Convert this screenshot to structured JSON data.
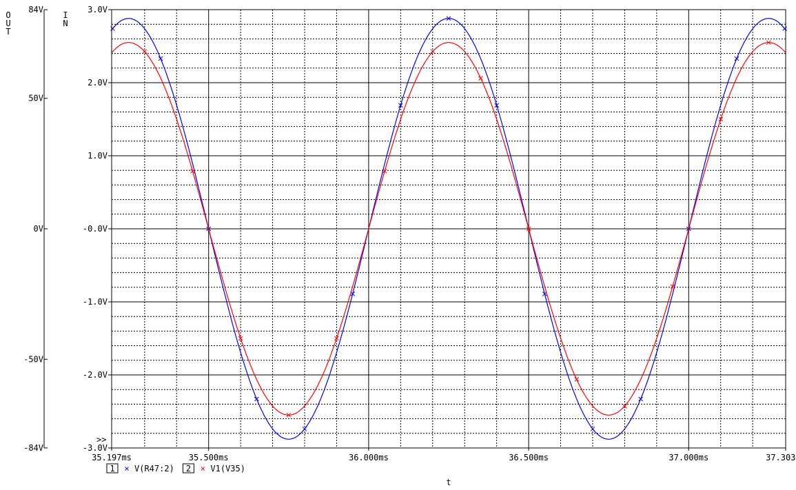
{
  "chart_data": {
    "type": "line",
    "xlabel": "t",
    "x_ticks": [
      "35.197ms",
      "35.500ms",
      "36.000ms",
      "36.500ms",
      "37.000ms",
      "37.303ms"
    ],
    "x_tick_values": [
      35.197,
      35.5,
      36.0,
      36.5,
      37.0,
      37.303
    ],
    "xlim": [
      35.197,
      37.303
    ],
    "y_axes": [
      {
        "id": "IN",
        "label": "I N",
        "ylim": [
          -3.0,
          3.0
        ],
        "ticks": [
          3.0,
          2.0,
          1.0,
          0.0,
          -1.0,
          -2.0,
          -3.0
        ],
        "tick_labels": [
          "3.0V",
          "2.0V",
          "1.0V",
          "-0.0V",
          "-1.0V",
          "-2.0V",
          "-3.0V"
        ],
        "overflow_marker": ">>"
      },
      {
        "id": "OUT",
        "label": "O U T",
        "ylim": [
          -84,
          84
        ],
        "ticks": [
          84,
          50,
          0,
          -50,
          -84
        ],
        "tick_labels": [
          "84V",
          "50V",
          "0V",
          "-50V",
          "-84V"
        ]
      }
    ],
    "grid": true,
    "series": [
      {
        "name": "V(R47:2)",
        "legend_index": "1",
        "marker": "×",
        "color": "#0000ff",
        "amplitude": 2.88,
        "period_ms": 1.0,
        "zero_crossing_ms": 35.5,
        "x": [
          35.2,
          35.25,
          35.3,
          35.35,
          35.4,
          35.45,
          35.5,
          35.55,
          35.6,
          35.65,
          35.7,
          35.75,
          35.8,
          35.85,
          35.9,
          35.95,
          36.0,
          36.05,
          36.1,
          36.15,
          36.2,
          36.25,
          36.3,
          36.35,
          36.4,
          36.45,
          36.5,
          36.55,
          36.6,
          36.65,
          36.7,
          36.75,
          36.8,
          36.85,
          36.9,
          36.95,
          37.0,
          37.05,
          37.1,
          37.15,
          37.2,
          37.25,
          37.3
        ],
        "y": [
          2.74,
          2.88,
          2.74,
          2.33,
          1.69,
          0.89,
          0.0,
          -0.89,
          -1.69,
          -2.33,
          -2.74,
          -2.88,
          -2.74,
          -2.33,
          -1.69,
          -0.89,
          0.0,
          0.89,
          1.69,
          2.33,
          2.74,
          2.88,
          2.74,
          2.33,
          1.69,
          0.89,
          0.0,
          -0.89,
          -1.69,
          -2.33,
          -2.74,
          -2.88,
          -2.74,
          -2.33,
          -1.69,
          -0.89,
          0.0,
          0.89,
          1.69,
          2.33,
          2.74,
          2.88,
          2.74
        ]
      },
      {
        "name": "V1(V35)",
        "legend_index": "2",
        "marker": "×",
        "color": "#ff0000",
        "amplitude": 2.55,
        "period_ms": 1.0,
        "zero_crossing_ms": 35.5,
        "x": [
          35.2,
          35.25,
          35.3,
          35.35,
          35.4,
          35.45,
          35.5,
          35.55,
          35.6,
          35.65,
          35.7,
          35.75,
          35.8,
          35.85,
          35.9,
          35.95,
          36.0,
          36.05,
          36.1,
          36.15,
          36.2,
          36.25,
          36.3,
          36.35,
          36.4,
          36.45,
          36.5,
          36.55,
          36.6,
          36.65,
          36.7,
          36.75,
          36.8,
          36.85,
          36.9,
          36.95,
          37.0,
          37.05,
          37.1,
          37.15,
          37.2,
          37.25,
          37.3
        ],
        "y": [
          2.43,
          2.55,
          2.43,
          2.06,
          1.5,
          0.79,
          0.0,
          -0.79,
          -1.5,
          -2.06,
          -2.43,
          -2.55,
          -2.43,
          -2.06,
          -1.5,
          -0.79,
          0.0,
          0.79,
          1.5,
          2.06,
          2.43,
          2.55,
          2.43,
          2.06,
          1.5,
          0.79,
          0.0,
          -0.79,
          -1.5,
          -2.06,
          -2.43,
          -2.55,
          -2.43,
          -2.06,
          -1.5,
          -0.79,
          0.0,
          0.79,
          1.5,
          2.06,
          2.43,
          2.55,
          2.43
        ]
      }
    ]
  }
}
